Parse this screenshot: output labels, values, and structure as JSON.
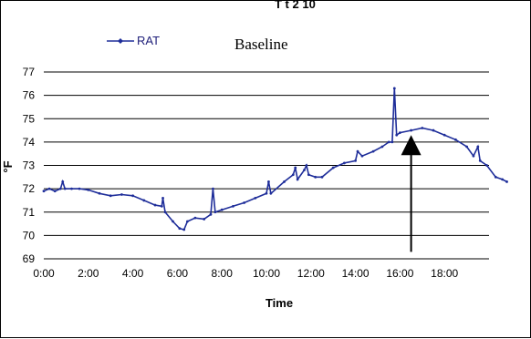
{
  "baseline_label": "Baseline",
  "cut_title": "T   t 2  10",
  "chart_data": {
    "type": "line",
    "title": "",
    "xlabel": "Time",
    "ylabel": "°F",
    "ylim": [
      69,
      77
    ],
    "xlim": [
      0,
      20
    ],
    "grid": "horizontal",
    "legend_position": "top-left",
    "y_ticks": [
      69,
      70,
      71,
      72,
      73,
      74,
      75,
      76,
      77
    ],
    "x_ticks": [
      "0:00",
      "2:00",
      "4:00",
      "6:00",
      "8:00",
      "10:00",
      "12:00",
      "14:00",
      "16:00",
      "18:00"
    ],
    "series": [
      {
        "name": "RAT",
        "color": "#1f2e9a",
        "points": [
          [
            0.0,
            71.9
          ],
          [
            0.25,
            72.0
          ],
          [
            0.5,
            71.9
          ],
          [
            0.75,
            72.0
          ],
          [
            0.85,
            72.3
          ],
          [
            0.95,
            72.0
          ],
          [
            1.25,
            72.0
          ],
          [
            1.6,
            72.0
          ],
          [
            2.0,
            71.95
          ],
          [
            2.5,
            71.8
          ],
          [
            3.0,
            71.7
          ],
          [
            3.5,
            71.75
          ],
          [
            4.0,
            71.7
          ],
          [
            4.5,
            71.5
          ],
          [
            5.0,
            71.3
          ],
          [
            5.3,
            71.25
          ],
          [
            5.35,
            71.6
          ],
          [
            5.45,
            71.0
          ],
          [
            5.8,
            70.6
          ],
          [
            6.1,
            70.3
          ],
          [
            6.3,
            70.25
          ],
          [
            6.45,
            70.6
          ],
          [
            6.8,
            70.75
          ],
          [
            7.2,
            70.7
          ],
          [
            7.5,
            70.9
          ],
          [
            7.6,
            72.0
          ],
          [
            7.7,
            71.0
          ],
          [
            8.0,
            71.1
          ],
          [
            8.5,
            71.25
          ],
          [
            9.0,
            71.4
          ],
          [
            9.5,
            71.6
          ],
          [
            10.0,
            71.8
          ],
          [
            10.1,
            72.3
          ],
          [
            10.2,
            71.8
          ],
          [
            10.8,
            72.3
          ],
          [
            11.2,
            72.6
          ],
          [
            11.3,
            72.9
          ],
          [
            11.4,
            72.4
          ],
          [
            11.7,
            72.8
          ],
          [
            11.8,
            73.0
          ],
          [
            11.9,
            72.6
          ],
          [
            12.2,
            72.5
          ],
          [
            12.5,
            72.5
          ],
          [
            13.0,
            72.9
          ],
          [
            13.5,
            73.1
          ],
          [
            14.0,
            73.2
          ],
          [
            14.1,
            73.6
          ],
          [
            14.3,
            73.4
          ],
          [
            14.8,
            73.6
          ],
          [
            15.2,
            73.8
          ],
          [
            15.5,
            74.0
          ],
          [
            15.65,
            74.0
          ],
          [
            15.75,
            76.3
          ],
          [
            15.85,
            74.3
          ],
          [
            16.0,
            74.4
          ],
          [
            16.5,
            74.5
          ],
          [
            17.0,
            74.6
          ],
          [
            17.5,
            74.5
          ],
          [
            18.0,
            74.3
          ],
          [
            18.5,
            74.1
          ],
          [
            19.0,
            73.8
          ],
          [
            19.3,
            73.4
          ],
          [
            19.5,
            73.8
          ],
          [
            19.6,
            73.2
          ],
          [
            19.9,
            73.0
          ],
          [
            20.3,
            72.5
          ],
          [
            20.6,
            72.4
          ],
          [
            20.8,
            72.3
          ]
        ]
      }
    ],
    "annotation": {
      "type": "arrow",
      "x": 16.5,
      "y_from": 69.3,
      "y_to": 74.3
    }
  }
}
